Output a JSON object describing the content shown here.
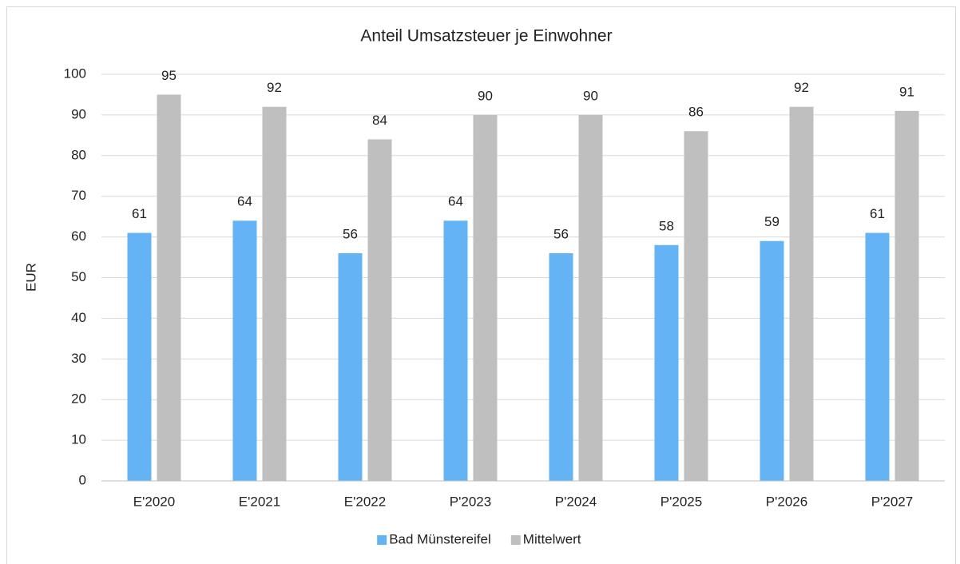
{
  "chart_data": {
    "type": "bar",
    "title": "Anteil Umsatzsteuer je Einwohner",
    "ylabel": "EUR",
    "categories": [
      "E'2020",
      "E'2021",
      "E'2022",
      "P'2023",
      "P'2024",
      "P'2025",
      "P'2026",
      "P'2027"
    ],
    "series": [
      {
        "name": "Bad Münstereifel",
        "color": "#63b3f5",
        "values": [
          61,
          64,
          56,
          64,
          56,
          58,
          59,
          61
        ]
      },
      {
        "name": "Mittelwert",
        "color": "#bfbfbf",
        "values": [
          95,
          92,
          84,
          90,
          90,
          86,
          92,
          91
        ]
      }
    ],
    "ylim": [
      0,
      100
    ],
    "yticks": [
      0,
      10,
      20,
      30,
      40,
      50,
      60,
      70,
      80,
      90,
      100
    ],
    "grid": true,
    "legend": "bottom"
  }
}
